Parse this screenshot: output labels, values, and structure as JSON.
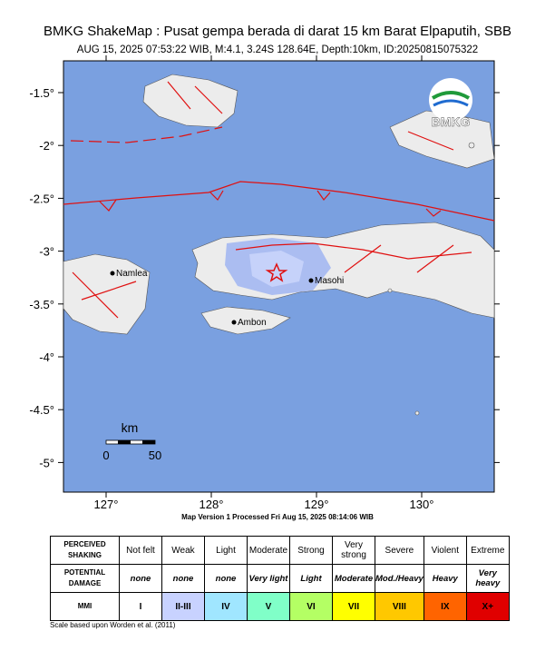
{
  "header": {
    "title": "BMKG ShakeMap : Pusat gempa berada di darat 15 km Barat Elpaputih, SBB",
    "subtitle": "AUG 15, 2025 07:53:22 WIB, M:4.1, 3.24S 128.64E, Depth:10km, ID:20250815075322"
  },
  "map": {
    "lat_labels": [
      "-1.5°",
      "-2°",
      "-2.5°",
      "-3°",
      "-3.5°",
      "-4°",
      "-4.5°",
      "-5°"
    ],
    "lon_labels": [
      "127°",
      "128°",
      "129°",
      "130°"
    ],
    "places": [
      "Namlea",
      "Masohi",
      "Ambon"
    ],
    "logo": "BMKG",
    "scale": {
      "unit": "km",
      "labels": [
        "0",
        "50"
      ]
    }
  },
  "footer": {
    "processed": "Map Version 1 Processed Fri Aug 15, 2025 08:14:06 WIB",
    "scale_note": "Scale based upon Worden et al. (2011)"
  },
  "legend": {
    "row_headers": [
      [
        "PERCEIVED",
        "SHAKING"
      ],
      [
        "POTENTIAL",
        "DAMAGE"
      ],
      [
        "MMI"
      ]
    ],
    "shaking": [
      "Not felt",
      "Weak",
      "Light",
      "Moderate",
      "Strong",
      "Very strong",
      "Severe",
      "Violent",
      "Extreme"
    ],
    "damage": [
      "none",
      "none",
      "none",
      "Very light",
      "Light",
      "Moderate",
      "Mod./Heavy",
      "Heavy",
      "Very heavy"
    ],
    "mmi": [
      "I",
      "II-III",
      "IV",
      "V",
      "VI",
      "VII",
      "VIII",
      "IX",
      "X+"
    ],
    "colors": [
      "#ffffff",
      "#c8d2ff",
      "#a0e6ff",
      "#80ffc8",
      "#b4ff64",
      "#ffff00",
      "#ffc800",
      "#ff6400",
      "#e00000"
    ]
  }
}
